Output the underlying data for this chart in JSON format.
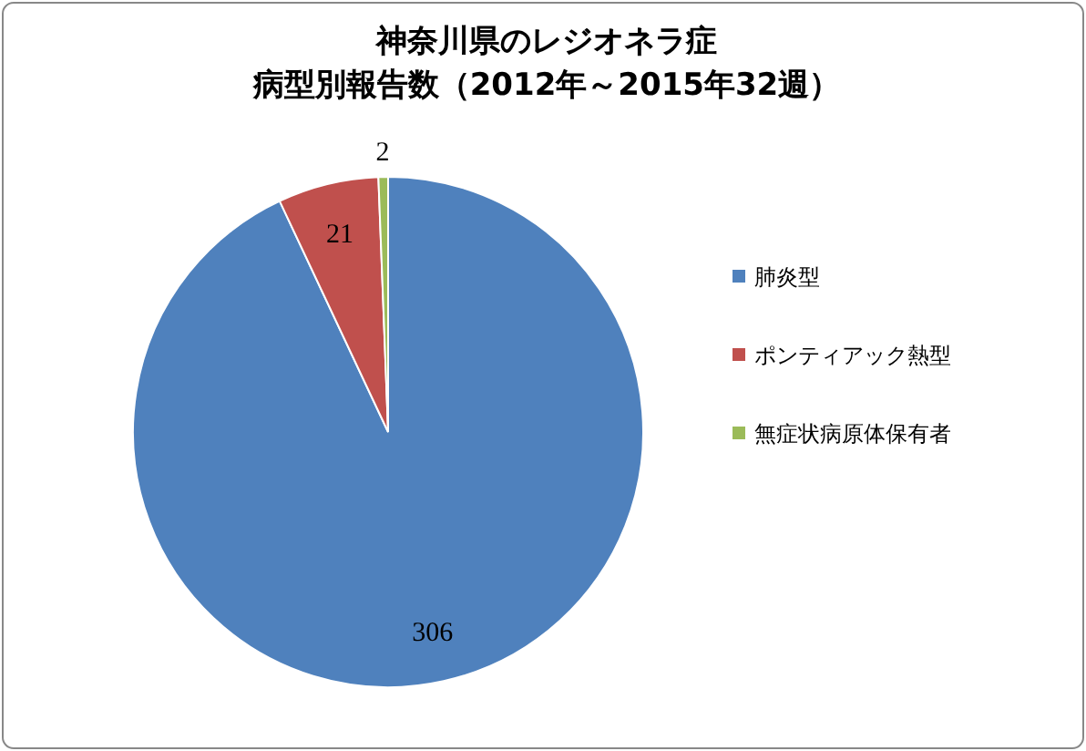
{
  "chart_data": {
    "type": "pie",
    "title": "神奈川県のレジオネラ症",
    "subtitle": "病型別報告数（2012年～2015年32週）",
    "categories": [
      "肺炎型",
      "ポンティアック熱型",
      "無症状病原体保有者"
    ],
    "values": [
      306,
      21,
      2
    ],
    "colors": [
      "#4f81bd",
      "#c0504d",
      "#9bbb59"
    ],
    "data_labels": true,
    "legend": "right"
  }
}
